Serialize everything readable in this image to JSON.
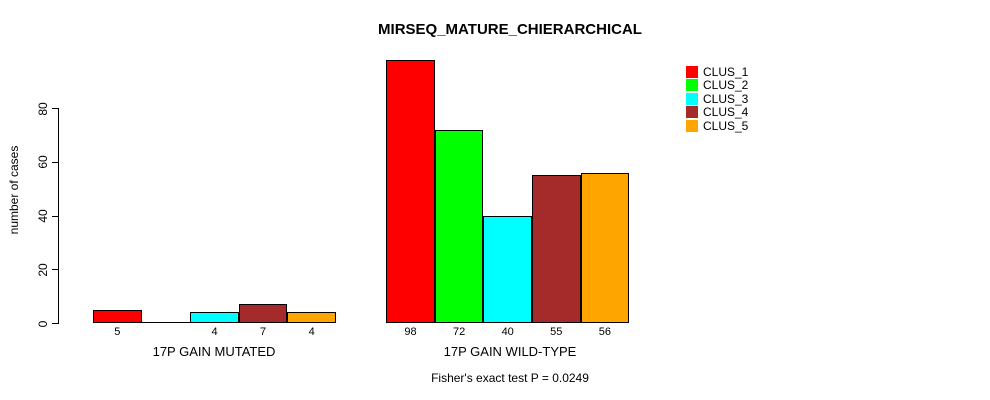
{
  "chart_data": {
    "type": "bar",
    "title": "MIRSEQ_MATURE_CHIERARCHICAL",
    "ylabel": "number of cases",
    "xlabel": "",
    "annotation": "Fisher's exact test P = 0.0249",
    "categories": [
      "17P GAIN MUTATED",
      "17P GAIN WILD-TYPE"
    ],
    "series": [
      {
        "name": "CLUS_1",
        "color": "#FF0000",
        "values": [
          5,
          98
        ]
      },
      {
        "name": "CLUS_2",
        "color": "#00FF00",
        "values": [
          0,
          72
        ]
      },
      {
        "name": "CLUS_3",
        "color": "#00FFFF",
        "values": [
          4,
          40
        ]
      },
      {
        "name": "CLUS_4",
        "color": "#A52A2A",
        "values": [
          7,
          55
        ]
      },
      {
        "name": "CLUS_5",
        "color": "#FFA500",
        "values": [
          4,
          56
        ]
      }
    ],
    "yticks": [
      0,
      20,
      40,
      60,
      80
    ],
    "ylim": [
      0,
      98
    ],
    "grid": false,
    "legend_position": "top-right",
    "bar_value_labels_visible": true,
    "zero_bars_unlabeled": true,
    "axis_color": "#000000",
    "background_color": "#FFFFFF"
  }
}
